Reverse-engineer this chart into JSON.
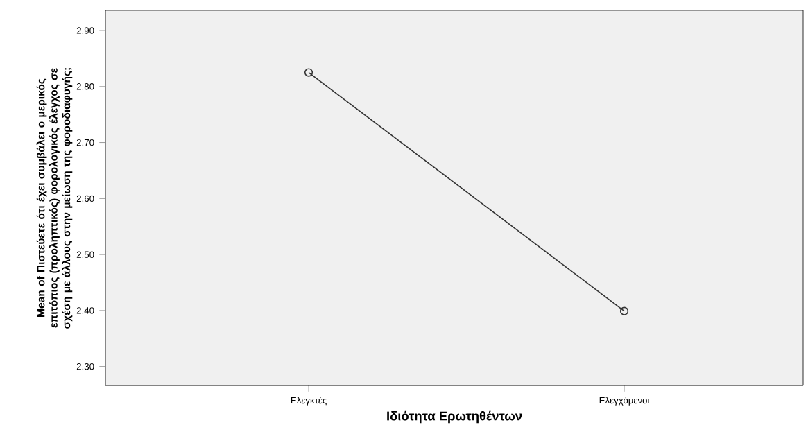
{
  "chart_data": {
    "type": "line",
    "xlabel": "Ιδιότητα Ερωτηθέντων",
    "ylabel": "Mean of Πιστεύετε ότι έχει συμβάλει ο μερικός επιτόπιος (προληπτικός) φορολογικός έλεγχος σε σχέση με άλλους στην μείωση της φοροδιαφυγής;",
    "categories": [
      "Ελεγκτές",
      "Ελεγχόμενοι"
    ],
    "series": [
      {
        "color": "#333333",
        "values": [
          2.825,
          2.399
        ]
      }
    ],
    "ylim": [
      2.266,
      2.936
    ],
    "yticks": [
      {
        "value": 2.3,
        "label": "2.30"
      },
      {
        "value": 2.4,
        "label": "2.40"
      },
      {
        "value": 2.5,
        "label": "2.50"
      },
      {
        "value": 2.6,
        "label": "2.60"
      },
      {
        "value": 2.7,
        "label": "2.70"
      },
      {
        "value": 2.8,
        "label": "2.80"
      },
      {
        "value": 2.9,
        "label": "2.90"
      }
    ],
    "marker": "circle",
    "line_style": "solid",
    "grid": false
  }
}
